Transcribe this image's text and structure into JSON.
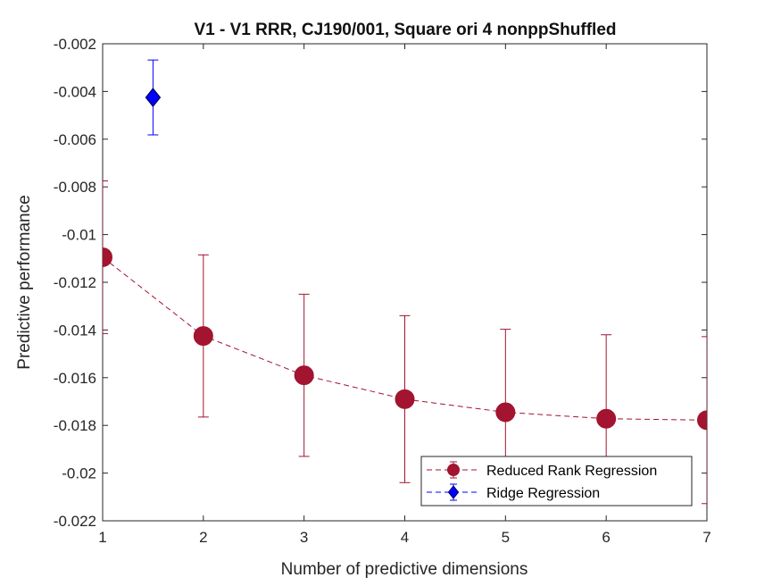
{
  "chart_data": {
    "type": "scatter",
    "title": "V1 - V1 RRR, CJ190/001, Square ori 4 nonppShuffled",
    "xlabel": "Number of predictive dimensions",
    "ylabel": "Predictive performance",
    "xlim": [
      1,
      7
    ],
    "ylim": [
      -0.022,
      -0.002
    ],
    "xticks": [
      1,
      2,
      3,
      4,
      5,
      6,
      7
    ],
    "xtick_labels": [
      "1",
      "2",
      "3",
      "4",
      "5",
      "6",
      "7"
    ],
    "yticks": [
      -0.022,
      -0.02,
      -0.018,
      -0.016,
      -0.014,
      -0.012,
      -0.01,
      -0.008,
      -0.006,
      -0.004,
      -0.002
    ],
    "ytick_labels": [
      "-0.022",
      "-0.02",
      "-0.018",
      "-0.016",
      "-0.014",
      "-0.012",
      "-0.01",
      "-0.008",
      "-0.006",
      "-0.004",
      "-0.002"
    ],
    "grid": false,
    "legend_position": "bottom-right",
    "series": [
      {
        "name": "Reduced Rank Regression",
        "color": "#A2142F",
        "line_style": "dashed",
        "marker": "circle",
        "x": [
          1,
          2,
          3,
          4,
          5,
          6,
          7
        ],
        "y": [
          -0.01095,
          -0.01425,
          -0.0159,
          -0.0169,
          -0.01745,
          -0.01772,
          -0.01778
        ],
        "err": [
          0.0032,
          0.0034,
          0.0034,
          0.0035,
          0.00348,
          0.00352,
          0.0035
        ]
      },
      {
        "name": "Ridge Regression",
        "color": "#0000FF",
        "line_style": "dashed",
        "marker": "diamond",
        "x": [
          1.5
        ],
        "y": [
          -0.00425
        ],
        "err": [
          0.00157
        ]
      }
    ]
  }
}
